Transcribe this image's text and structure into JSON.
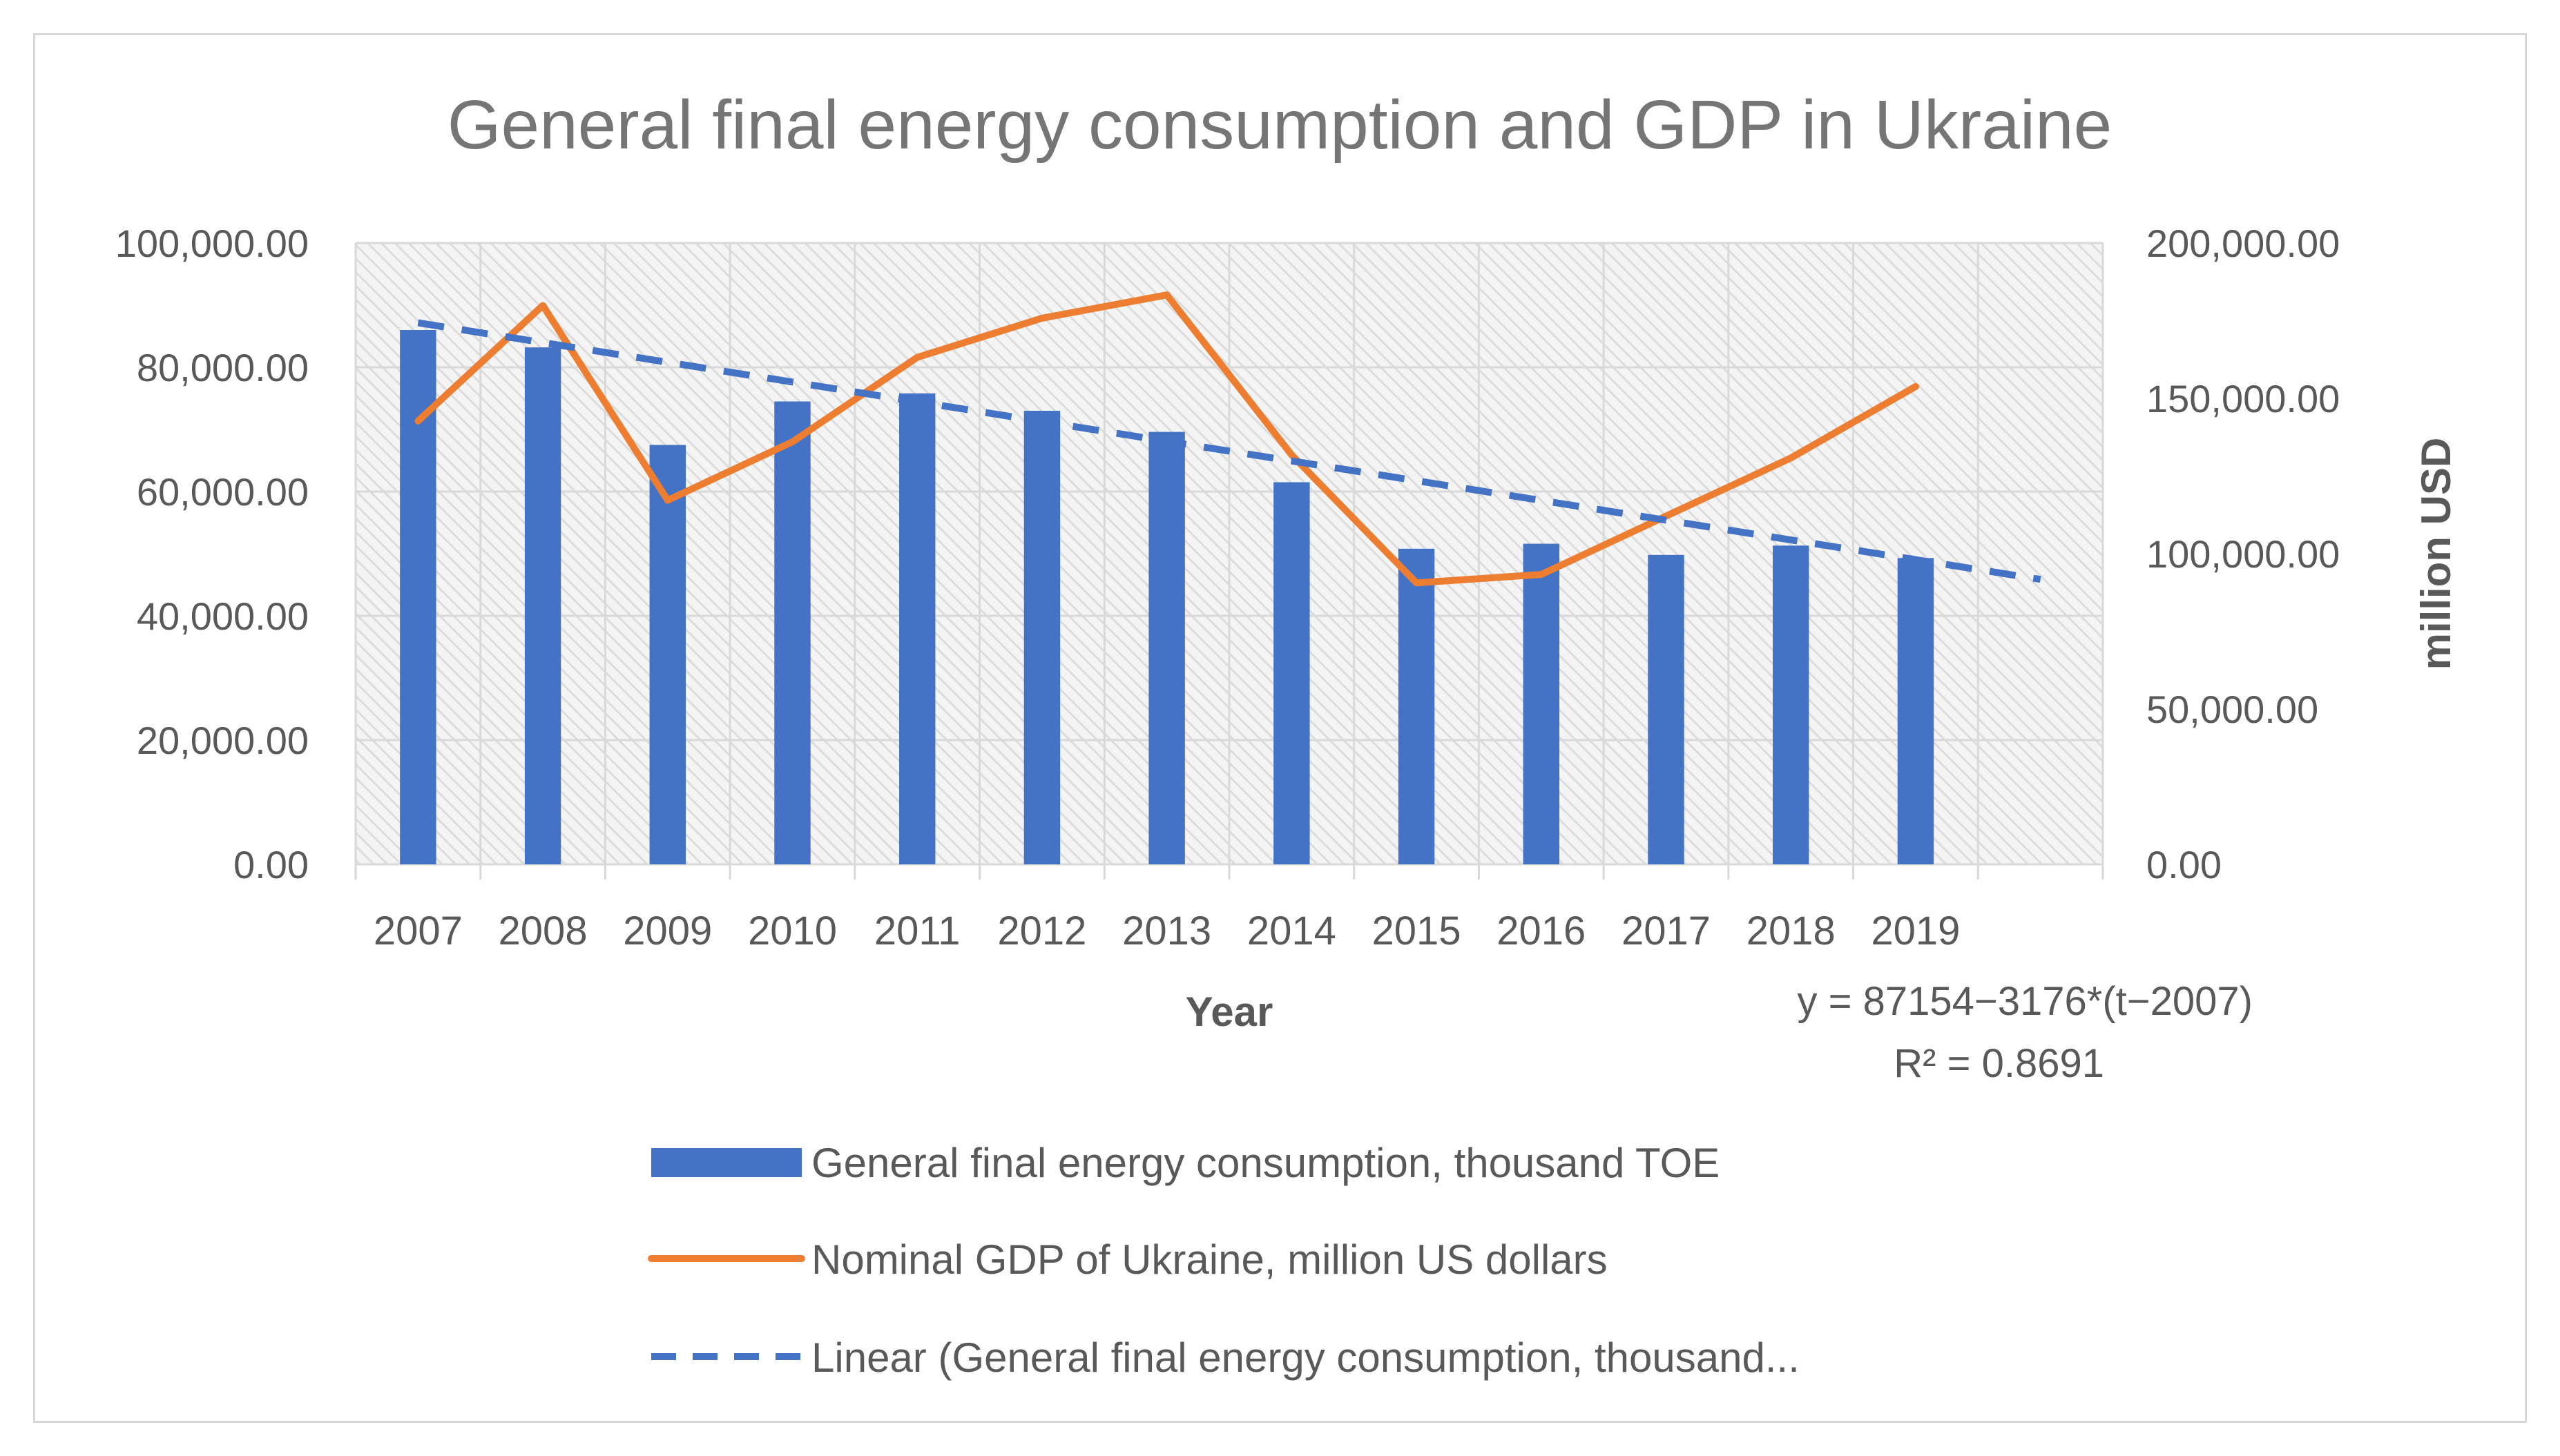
{
  "chart_data": {
    "type": "bar",
    "title": "General final energy consumption and GDP in Ukraine",
    "xlabel": "Year",
    "ylabel": "",
    "y2label": "million USD",
    "categories": [
      "2007",
      "2008",
      "2009",
      "2010",
      "2011",
      "2012",
      "2013",
      "2014",
      "2015",
      "2016",
      "2017",
      "2018",
      "2019"
    ],
    "ylim": [
      0,
      100000
    ],
    "y2lim": [
      0,
      200000
    ],
    "yticks": [
      "0.00",
      "20,000.00",
      "40,000.00",
      "60,000.00",
      "80,000.00",
      "100,000.00"
    ],
    "y2ticks": [
      "0.00",
      "50,000.00",
      "100,000.00",
      "150,000.00",
      "200,000.00"
    ],
    "grid": true,
    "series": [
      {
        "name": "General final energy consumption, thousand TOE",
        "type": "bar",
        "axis": "left",
        "color": "#4472c4",
        "values": [
          86000,
          83200,
          67500,
          74500,
          75800,
          73000,
          69600,
          61500,
          50800,
          51600,
          49800,
          51300,
          49300
        ]
      },
      {
        "name": "Nominal GDP of Ukraine, million US dollars",
        "type": "line",
        "axis": "right",
        "color": "#ed7d31",
        "values": [
          142700,
          179900,
          117200,
          136000,
          163200,
          175800,
          183300,
          131800,
          90600,
          93300,
          112100,
          130800,
          153800
        ]
      },
      {
        "name": "Linear (General final energy consumption, thousand...",
        "type": "trendline",
        "axis": "left",
        "color": "#4472c4",
        "intercept": 87154,
        "slope": -3176,
        "base_year": 2007,
        "x_from": 2007,
        "x_to": 2020
      }
    ],
    "annotations": [
      "y = 87154−3176*(t−2007)",
      "R² = 0.8691"
    ],
    "legend_position": "bottom"
  }
}
